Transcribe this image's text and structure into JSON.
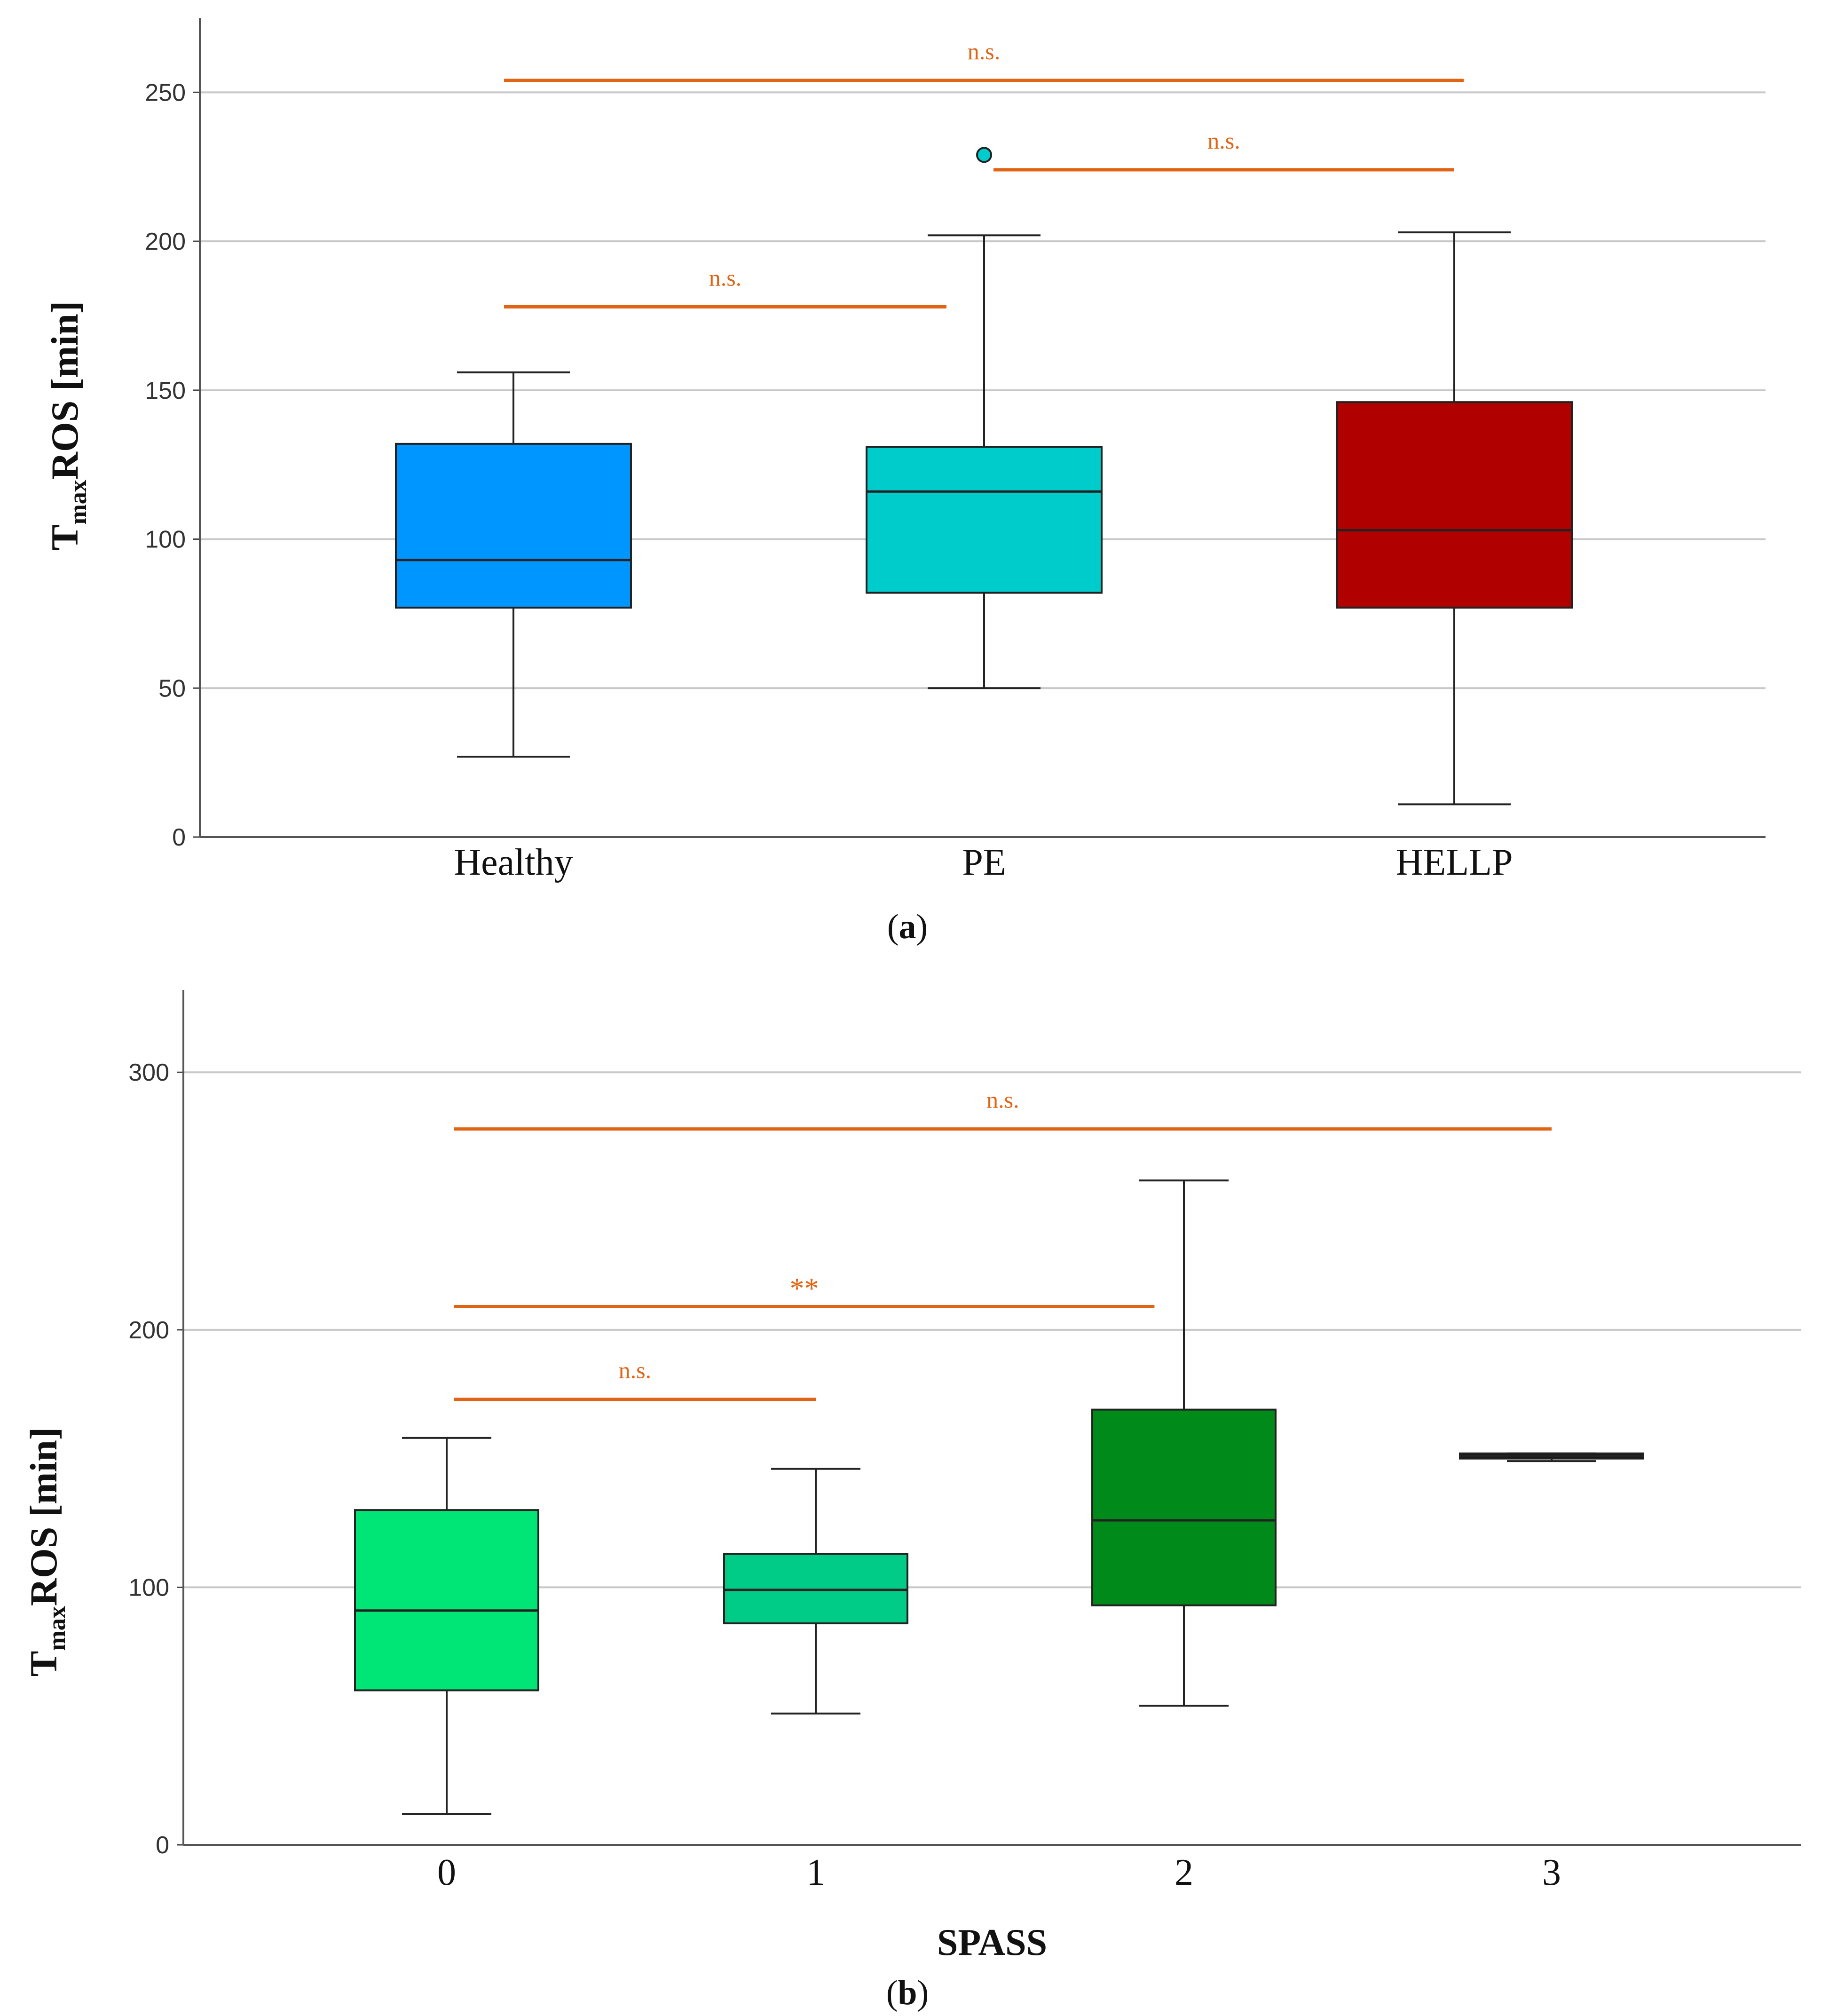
{
  "chart_data": [
    {
      "type": "box",
      "panel_label": "a",
      "ylabel_main": "T",
      "ylabel_sub": "max",
      "ylabel_rest": "ROS [min]",
      "xlabel": "",
      "ylim": [
        0,
        275
      ],
      "yticks": [
        0,
        50,
        100,
        150,
        200,
        250
      ],
      "grid": true,
      "categories": [
        "Healthy",
        "PE",
        "HELLP"
      ],
      "boxes": [
        {
          "name": "Healthy",
          "color": "#0096ff",
          "whisker_low": 27,
          "q1": 77,
          "median": 93,
          "q3": 132,
          "whisker_high": 156,
          "outliers": []
        },
        {
          "name": "PE",
          "color": "#00cccc",
          "whisker_low": 50,
          "q1": 82,
          "median": 116,
          "q3": 131,
          "whisker_high": 202,
          "outliers": [
            229
          ]
        },
        {
          "name": "HELLP",
          "color": "#b00000",
          "whisker_low": 11,
          "q1": 77,
          "median": 103,
          "q3": 146,
          "whisker_high": 203,
          "outliers": []
        }
      ],
      "comparisons": [
        {
          "from": 0,
          "to": 3,
          "from_pos": -0.02,
          "to_pos": 2.02,
          "y": 254,
          "label": "n.s."
        },
        {
          "from_pos": 1.02,
          "to_pos": 2.0,
          "y": 224,
          "label": "n.s."
        },
        {
          "from_pos": -0.02,
          "to_pos": 0.92,
          "y": 178,
          "label": "n.s."
        }
      ]
    },
    {
      "type": "box",
      "panel_label": "b",
      "ylabel_main": "T",
      "ylabel_sub": "max",
      "ylabel_rest": "ROS [min]",
      "xlabel": "SPASS",
      "ylim": [
        0,
        332
      ],
      "yticks": [
        0,
        100,
        200,
        300
      ],
      "grid": true,
      "categories": [
        "0",
        "1",
        "2",
        "3"
      ],
      "boxes": [
        {
          "name": "0",
          "color": "#00e676",
          "whisker_low": 12,
          "q1": 60,
          "median": 91,
          "q3": 130,
          "whisker_high": 158,
          "outliers": []
        },
        {
          "name": "1",
          "color": "#00cc88",
          "whisker_low": 51,
          "q1": 86,
          "median": 99,
          "q3": 113,
          "whisker_high": 146,
          "outliers": []
        },
        {
          "name": "2",
          "color": "#008a1a",
          "whisker_low": 54,
          "q1": 93,
          "median": 126,
          "q3": 169,
          "whisker_high": 258,
          "outliers": []
        },
        {
          "name": "3",
          "color": "#111111",
          "whisker_low": 149,
          "q1": 150,
          "median": 151,
          "q3": 152,
          "whisker_high": 152,
          "outliers": []
        }
      ],
      "comparisons": [
        {
          "from_pos": 0.02,
          "to_pos": 3.0,
          "y": 278,
          "label": "n.s."
        },
        {
          "from_pos": 0.02,
          "to_pos": 1.92,
          "y": 209,
          "label": "**"
        },
        {
          "from_pos": 0.02,
          "to_pos": 1.0,
          "y": 173,
          "label": "n.s."
        }
      ]
    }
  ]
}
